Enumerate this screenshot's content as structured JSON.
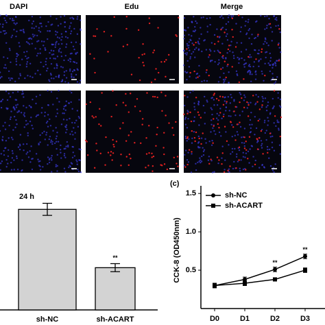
{
  "panels": {
    "columns": [
      "DAPI",
      "Edu",
      "Merge"
    ]
  },
  "chart_data": [
    {
      "type": "bar",
      "title": "24 h",
      "categories": [
        "sh-NC",
        "sh-ACART"
      ],
      "values": [
        1.0,
        0.42
      ],
      "errors": [
        0.06,
        0.04
      ],
      "significance": [
        null,
        "**"
      ],
      "color": "#d3d3d3",
      "ylim": [
        0,
        1.2
      ]
    },
    {
      "type": "line",
      "label": "(c)",
      "y_label": "CCK-8 (OD450nm)",
      "categories": [
        "D0",
        "D1",
        "D2",
        "D3"
      ],
      "series": [
        {
          "name": "sh-NC",
          "marker": "circle",
          "values": [
            0.3,
            0.38,
            0.51,
            0.68
          ],
          "errors": [
            0.03,
            0.03,
            0.03,
            0.03
          ],
          "significance": [
            null,
            null,
            "**",
            "**"
          ]
        },
        {
          "name": "sh-ACART",
          "marker": "square",
          "values": [
            0.3,
            0.33,
            0.38,
            0.5
          ],
          "errors": [
            0.03,
            0.03,
            0.02,
            0.03
          ]
        }
      ],
      "color": "#000000",
      "ylim": [
        0,
        1.6
      ],
      "yticks": [
        0.5,
        {
          "value": 1,
          "label": "1.0"
        },
        1.5
      ]
    }
  ]
}
